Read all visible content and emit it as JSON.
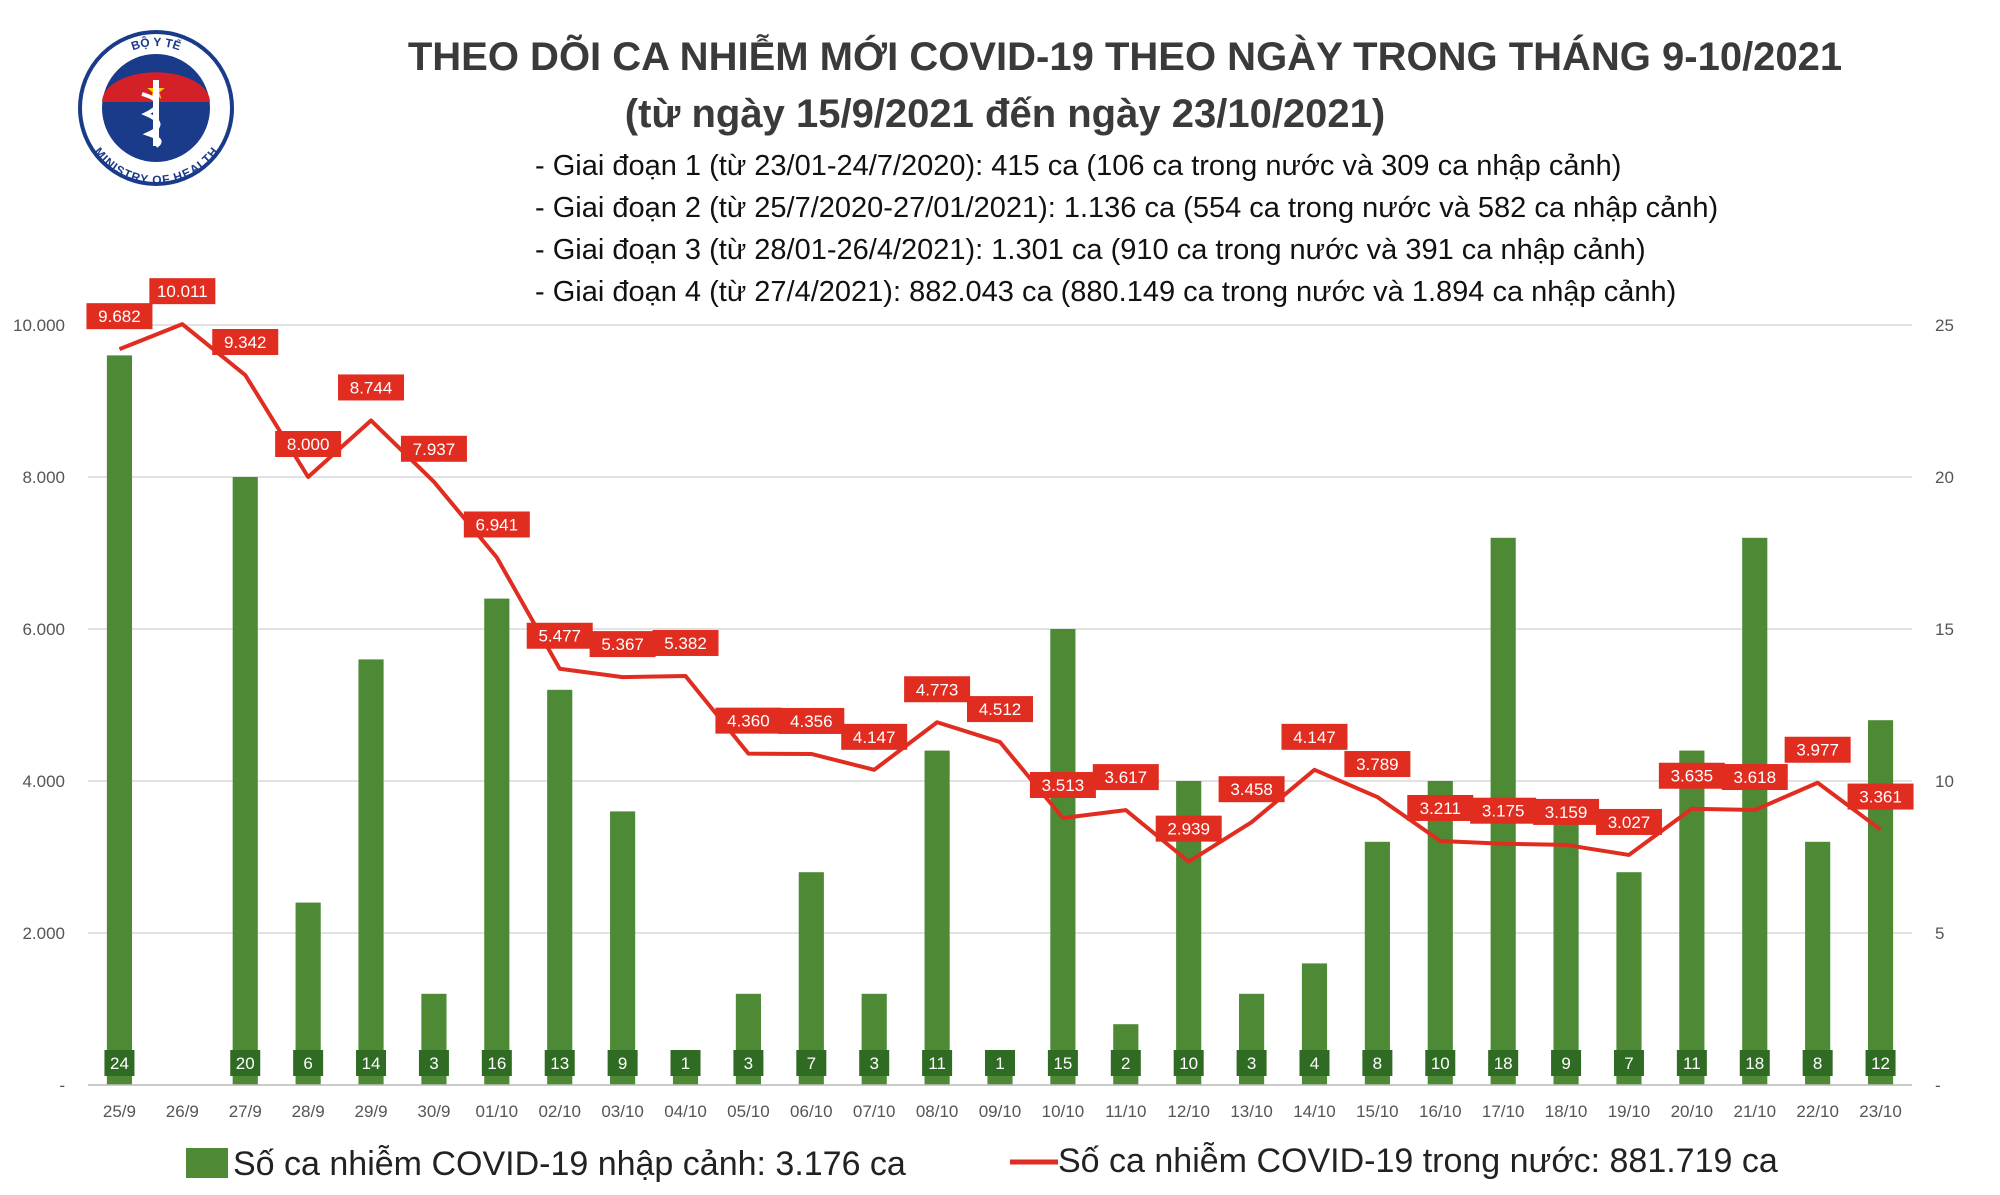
{
  "header": {
    "title": "THEO DÕI CA NHIỄM MỚI COVID-19 THEO NGÀY TRONG THÁNG 9-10/2021",
    "subtitle": "(từ ngày 15/9/2021 đến ngày 23/10/2021)",
    "notes": [
      "- Giai đoạn 1 (từ 23/01-24/7/2020): 415 ca (106 ca trong nước và 309 ca nhập cảnh)",
      "- Giai đoạn 2 (từ 25/7/2020-27/01/2021): 1.136 ca (554 ca trong nước và 582 ca nhập cảnh)",
      "- Giai đoạn 3 (từ 28/01-26/4/2021): 1.301 ca (910 ca trong nước và 391 ca nhập cảnh)",
      "- Giai đoạn 4 (từ 27/4/2021): 882.043 ca (880.149 ca trong nước và 1.894 ca nhập cảnh)"
    ]
  },
  "logo": {
    "top_text": "BỘ Y TẾ",
    "bottom_text": "MINISTRY OF HEALTH",
    "colors": {
      "blue": "#1a3a8a",
      "red": "#d42027",
      "star": "#f5d200"
    }
  },
  "chart_data": {
    "type": "bar+line",
    "categories": [
      "25/9",
      "26/9",
      "27/9",
      "28/9",
      "29/9",
      "30/9",
      "01/10",
      "02/10",
      "03/10",
      "04/10",
      "05/10",
      "06/10",
      "07/10",
      "08/10",
      "09/10",
      "10/10",
      "11/10",
      "12/10",
      "13/10",
      "14/10",
      "15/10",
      "16/10",
      "17/10",
      "18/10",
      "19/10",
      "20/10",
      "21/10",
      "22/10",
      "23/10"
    ],
    "series": [
      {
        "name": "Số ca nhiễm COVID-19 nhập cảnh: 3.176 ca",
        "type": "bar",
        "axis": "right",
        "color": "#4e8a35",
        "values": [
          24,
          0,
          20,
          6,
          14,
          3,
          16,
          13,
          9,
          1,
          3,
          7,
          3,
          11,
          1,
          15,
          2,
          10,
          3,
          4,
          8,
          10,
          18,
          9,
          7,
          11,
          18,
          8,
          12
        ],
        "labels": [
          "24",
          "",
          "20",
          "6",
          "14",
          "3",
          "16",
          "13",
          "9",
          "1",
          "3",
          "7",
          "3",
          "11",
          "1",
          "15",
          "2",
          "10",
          "3",
          "4",
          "8",
          "10",
          "18",
          "9",
          "7",
          "11",
          "18",
          "8",
          "12"
        ]
      },
      {
        "name": "Số ca nhiễm COVID-19 trong nước: 881.719 ca",
        "type": "line",
        "axis": "left",
        "color": "#e12c20",
        "values": [
          9682,
          10011,
          9342,
          8000,
          8744,
          7937,
          6941,
          5477,
          5367,
          5382,
          4360,
          4356,
          4147,
          4773,
          4512,
          3513,
          3617,
          2939,
          3458,
          4147,
          3789,
          3211,
          3175,
          3159,
          3027,
          3635,
          3618,
          3977,
          3361
        ],
        "labels": [
          "9.682",
          "10.011",
          "9.342",
          "8.000",
          "8.744",
          "7.937",
          "6.941",
          "5.477",
          "5.367",
          "5.382",
          "4.360",
          "4.356",
          "4.147",
          "4.773",
          "4.512",
          "3.513",
          "3.617",
          "2.939",
          "3.458",
          "4.147",
          "3.789",
          "3.211",
          "3.175",
          "3.159",
          "3.027",
          "3.635",
          "3.618",
          "3.977",
          "3.361"
        ]
      }
    ],
    "left_axis": {
      "ylim": [
        0,
        10000
      ],
      "ticks": [
        0,
        2000,
        4000,
        6000,
        8000,
        10000
      ],
      "tick_labels": [
        "-",
        "2.000",
        "4.000",
        "6.000",
        "8.000",
        "10.000"
      ]
    },
    "right_axis": {
      "ylim": [
        0,
        25
      ],
      "ticks": [
        0,
        5,
        10,
        15,
        20,
        25
      ],
      "tick_labels": [
        "-",
        "5",
        "10",
        "15",
        "20",
        "25"
      ]
    },
    "grid": true,
    "legend_position": "bottom"
  }
}
